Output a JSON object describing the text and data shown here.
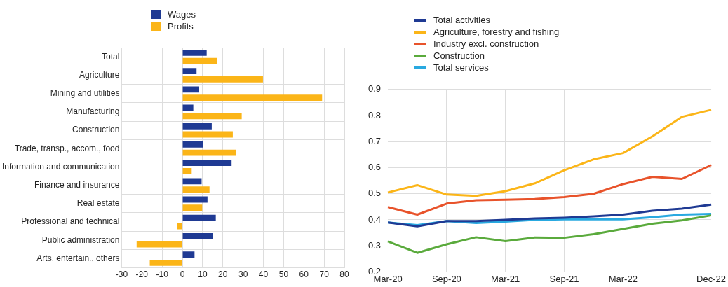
{
  "chart_data": [
    {
      "type": "bar",
      "orientation": "horizontal",
      "categories": [
        "Total",
        "Agriculture",
        "Mining and utilities",
        "Manufacturing",
        "Construction",
        "Trade, transp., accom., food",
        "Information and communication",
        "Finance and insurance",
        "Real estate",
        "Professional and technical",
        "Public administration",
        "Arts, entertain., others"
      ],
      "series": [
        {
          "name": "Wages",
          "color": "#1f3a93",
          "values": [
            12,
            7,
            8.3,
            5.4,
            14.5,
            10.3,
            24.3,
            9.5,
            12.4,
            16.5,
            15,
            6
          ]
        },
        {
          "name": "Profits",
          "color": "#fbb518",
          "values": [
            17,
            39.8,
            69,
            29.3,
            24.9,
            26.6,
            4.6,
            13.4,
            9.8,
            -2.7,
            -22.6,
            -16.1
          ]
        }
      ],
      "xlim": [
        -30,
        80
      ],
      "xticks": [
        -30,
        -20,
        -10,
        0,
        10,
        20,
        30,
        40,
        50,
        60,
        70,
        80
      ],
      "grid": true,
      "legend": "top left"
    },
    {
      "type": "line",
      "categories": [
        "Mar-20",
        null,
        "Sep-20",
        null,
        "Mar-21",
        null,
        "Sep-21",
        null,
        "Mar-22",
        null,
        null,
        "Dec-22"
      ],
      "series": [
        {
          "name": "Total activities",
          "color": "#1f3a93",
          "values": [
            0.39,
            0.375,
            0.395,
            0.395,
            0.4,
            0.405,
            0.408,
            0.413,
            0.42,
            0.435,
            0.443,
            0.458
          ]
        },
        {
          "name": "Agriculture, forestry and fishing",
          "color": "#fbb518",
          "values": [
            0.505,
            0.533,
            0.497,
            0.492,
            0.51,
            0.54,
            0.59,
            0.632,
            0.656,
            0.72,
            0.795,
            0.822
          ]
        },
        {
          "name": "Industry excl. construction",
          "color": "#e8532b",
          "values": [
            0.449,
            0.42,
            0.462,
            0.475,
            0.477,
            0.48,
            0.487,
            0.5,
            0.537,
            0.565,
            0.557,
            0.61
          ]
        },
        {
          "name": "Construction",
          "color": "#5aaa3c",
          "values": [
            0.317,
            0.273,
            0.306,
            0.333,
            0.318,
            0.332,
            0.331,
            0.345,
            0.365,
            0.385,
            0.398,
            0.417
          ]
        },
        {
          "name": "Total services",
          "color": "#29a9e0",
          "values": [
            0.39,
            0.38,
            0.395,
            0.388,
            0.393,
            0.4,
            0.402,
            0.402,
            0.402,
            0.41,
            0.42,
            0.423
          ]
        }
      ],
      "ylim": [
        0.2,
        0.9
      ],
      "yticks": [
        0.2,
        0.3,
        0.4,
        0.5,
        0.6,
        0.7,
        0.8,
        0.9
      ],
      "grid": true,
      "legend": "top left",
      "marker": "none",
      "line_style": "solid"
    }
  ]
}
